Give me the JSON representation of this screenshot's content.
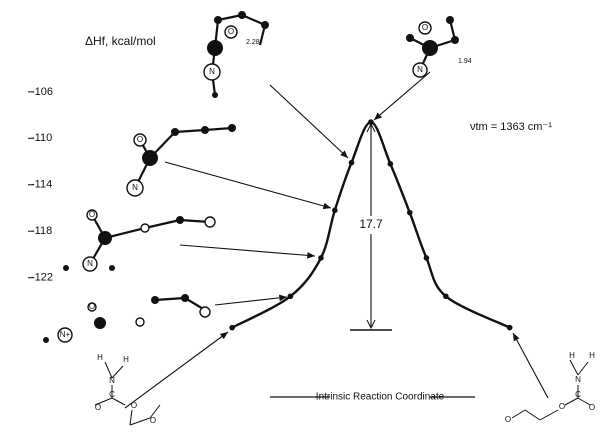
{
  "chart_data": {
    "type": "line",
    "y_label": "ΔHf, kcal/mol",
    "x_label": "Intrinsic Reaction Coordinate",
    "x": [
      0,
      2.1,
      3.2,
      3.7,
      4.3,
      5.0,
      5.7,
      6.4,
      7.0,
      7.7,
      10.0
    ],
    "values": [
      -126.3,
      -123.6,
      -120.3,
      -116.2,
      -112.1,
      -108.6,
      -112.2,
      -116.4,
      -120.3,
      -123.6,
      -126.3
    ],
    "color": "#111111",
    "xlim": [
      -8,
      13
    ],
    "ylim": [
      -129,
      -103
    ],
    "yticks": [
      -106,
      -110,
      -114,
      -118,
      -122
    ],
    "annotations": [
      "17.7",
      "νtm = 1363 cm⁻¹",
      "2.28",
      "1.94"
    ],
    "atom_labels": [
      "O",
      "N",
      "N",
      "O",
      "O",
      "N",
      "N+",
      "O",
      "H",
      "N",
      "H",
      "C",
      "O",
      "O",
      "O",
      "H",
      "N",
      "H",
      "C",
      "O",
      "O",
      "O",
      "O",
      "N"
    ]
  }
}
